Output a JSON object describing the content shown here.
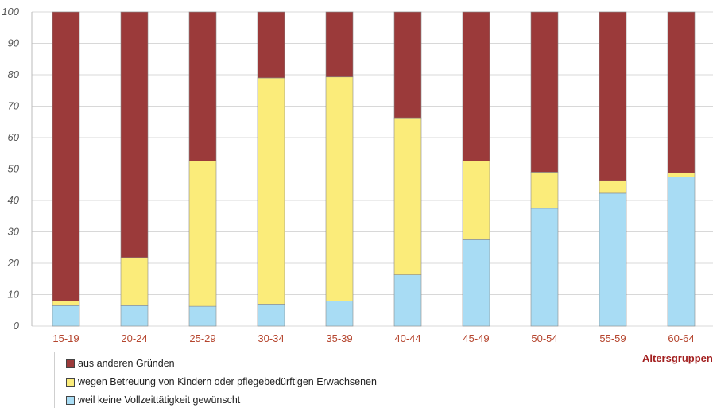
{
  "chart_data": {
    "type": "bar",
    "stacked": true,
    "categories": [
      "15-19",
      "20-24",
      "25-29",
      "30-34",
      "35-39",
      "40-44",
      "45-49",
      "50-54",
      "55-59",
      "60-64"
    ],
    "series": [
      {
        "name": "weil keine Vollzeittätigkeit gewünscht",
        "color": "#a8dcf4",
        "values": [
          6.5,
          6.5,
          6.3,
          7,
          8,
          16.3,
          27.5,
          37.5,
          42.3,
          47.5
        ]
      },
      {
        "name": "wegen Betreuung von Kindern oder pflegebedürftigen Erwachsenen",
        "color": "#fbec7a",
        "values": [
          1.5,
          15.3,
          46.2,
          72,
          71.3,
          50,
          25,
          11.5,
          4,
          1.3
        ]
      },
      {
        "name": "aus anderen Gründen",
        "color": "#9b3a3a",
        "values": [
          92,
          78.2,
          47.5,
          21,
          20.7,
          33.7,
          47.5,
          51,
          53.7,
          51.2
        ]
      }
    ],
    "xlabel": "Altersgruppen",
    "ylabel": "",
    "ylim": [
      0,
      100
    ],
    "yticks": [
      0,
      10,
      20,
      30,
      40,
      50,
      60,
      70,
      80,
      90,
      100
    ],
    "grid": true,
    "legend_position": "bottom-left",
    "legend_order": [
      "aus anderen Gründen",
      "wegen Betreuung von Kindern oder pflegebedürftigen Erwachsenen",
      "weil keine Vollzeittätigkeit gewünscht"
    ]
  }
}
